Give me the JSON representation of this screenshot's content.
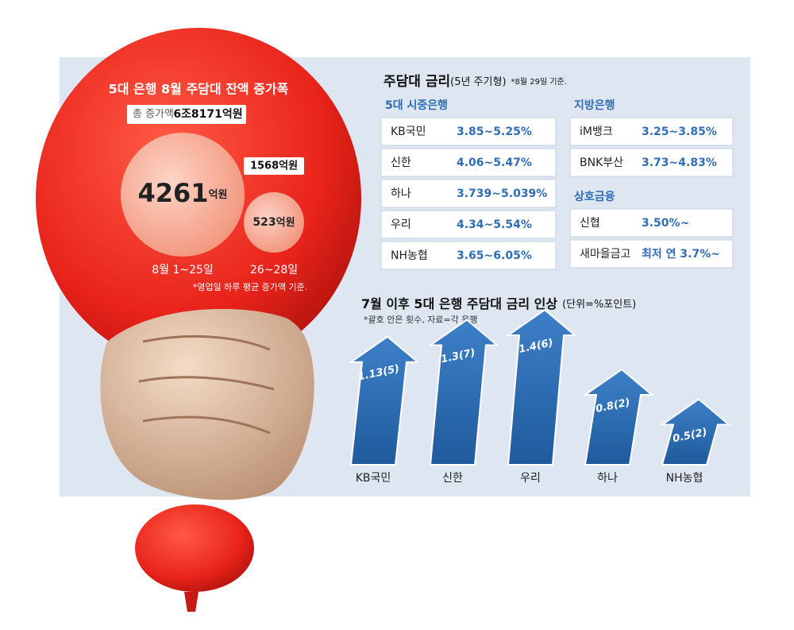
{
  "balloon": {
    "title": "5대 은행 8월 주담대 잔액 증가폭",
    "total_label": "총 증가액",
    "total": "6조8171억원",
    "bubbles": [
      {
        "value": 4261,
        "unit": "억원",
        "period": "8월 1~25일"
      },
      {
        "value": 523,
        "unit": "억원",
        "period": "26~28일",
        "callout": "1568억원"
      }
    ],
    "note": "*영업일 하루 평균 증가액 기준."
  },
  "rates": {
    "title": "주담대 금리",
    "subtitle": "(5년 주기형)",
    "note": "*8월 29일 기준.",
    "groups": [
      {
        "name": "5대 시중은행",
        "rows": [
          [
            "KB국민",
            "3.85~5.25%"
          ],
          [
            "신한",
            "4.06~5.47%"
          ],
          [
            "하나",
            "3.739~5.039%"
          ],
          [
            "우리",
            "4.34~5.54%"
          ],
          [
            "NH농협",
            "3.65~6.05%"
          ]
        ]
      },
      {
        "name": "지방은행",
        "rows": [
          [
            "iM뱅크",
            "3.25~3.85%"
          ],
          [
            "BNK부산",
            "3.73~4.83%"
          ]
        ]
      },
      {
        "name": "상호금융",
        "rows": [
          [
            "신협",
            "3.50%~"
          ],
          [
            "새마을금고",
            "최저 연 3.7%~"
          ]
        ]
      }
    ]
  },
  "chart_data": {
    "type": "arrow",
    "title": "7월 이후 5대 은행 주담대 금리 인상",
    "subtitle": "(단위=%포인트)",
    "note": "*괄호 안은 횟수, 자료=각 은행",
    "categories": [
      "KB국민",
      "신한",
      "우리",
      "하나",
      "NH농협"
    ],
    "values": [
      1.13,
      1.3,
      1.4,
      0.8,
      0.5
    ],
    "value_labels": [
      "1.13(5)",
      "1.3(7)",
      "1.4(6)",
      "0.8(2)",
      "0.5(2)"
    ],
    "color": "#2f6db5"
  }
}
